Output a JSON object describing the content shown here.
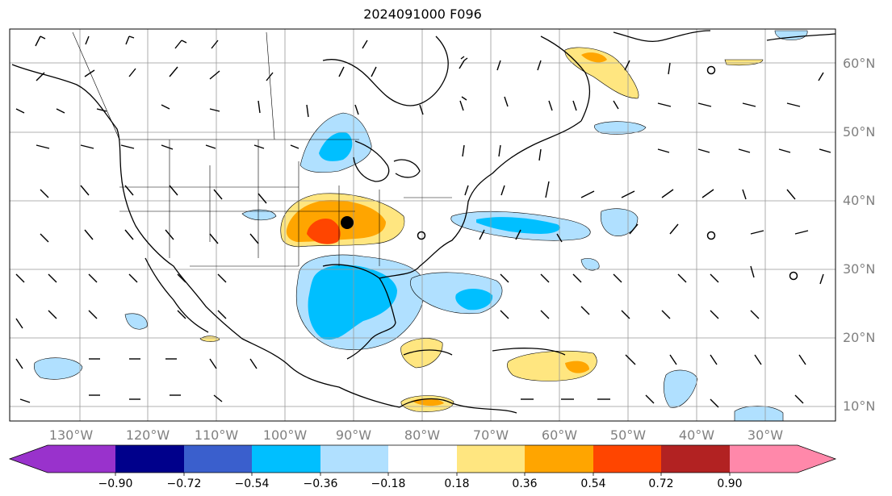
{
  "title": "2024091000 F096",
  "map": {
    "lon_labels": [
      "130°W",
      "120°W",
      "110°W",
      "100°W",
      "90°W",
      "80°W",
      "70°W",
      "60°W",
      "50°W",
      "40°W",
      "30°W"
    ],
    "lat_labels": [
      "60°N",
      "50°N",
      "40°N",
      "30°N",
      "20°N",
      "10°N"
    ],
    "lon_range": [
      -135,
      -13
    ],
    "lat_range": [
      8,
      65
    ]
  },
  "colorbar": {
    "tick_labels": [
      "−0.90",
      "−0.72",
      "−0.54",
      "−0.36",
      "−0.18",
      "0.18",
      "0.36",
      "0.54",
      "0.72",
      "0.90"
    ],
    "colors": [
      "#9932cc",
      "#00008b",
      "#3a5fcd",
      "#00bfff",
      "#b0e0ff",
      "#ffffff",
      "#ffe680",
      "#ffa500",
      "#ff4500",
      "#b22222",
      "#ff88aa"
    ]
  }
}
